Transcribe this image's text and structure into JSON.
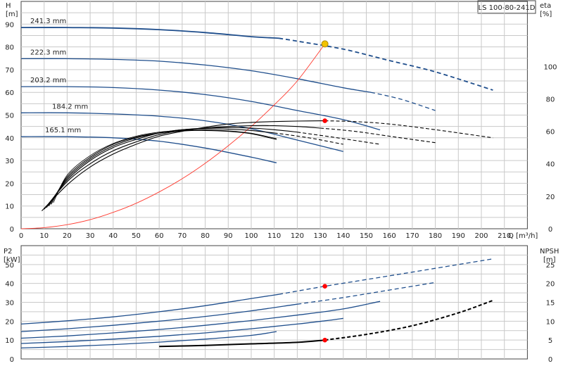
{
  "title": "LS 100-80-241D",
  "top_chart": {
    "y_left_label": "H",
    "y_left_unit": "[m]",
    "y_right_label": "eta",
    "y_right_unit": "[%]",
    "x_label": "Q [m³/h]",
    "x_ticks": [
      0,
      10,
      20,
      30,
      40,
      50,
      60,
      70,
      80,
      90,
      100,
      110,
      120,
      130,
      140,
      150,
      160,
      170,
      180,
      190,
      200,
      210
    ],
    "y_left_ticks": [
      0,
      10,
      20,
      30,
      40,
      50,
      60,
      70,
      80,
      90
    ],
    "y_right_ticks": [
      0,
      20,
      40,
      60,
      80,
      100
    ]
  },
  "bottom_chart": {
    "y_left_label": "P2",
    "y_left_unit": "[kW]",
    "y_right_label": "NPSH",
    "y_right_unit": "[m]",
    "y_left_ticks": [
      0,
      10,
      20,
      30,
      40,
      50
    ],
    "y_right_ticks": [
      0,
      5,
      10,
      15,
      20,
      25
    ]
  },
  "colors": {
    "curve_blue": "#1f4e8c",
    "system_curve": "#ff3b30",
    "duty_point": "#f2c200",
    "marker": "#ff0000",
    "eta_curve": "#000000"
  },
  "chart_data": [
    {
      "type": "line",
      "title": "",
      "xlabel": "Q [m³/h]",
      "ylabel": "H [m]",
      "y2label": "eta [%]",
      "xlim": [
        0,
        220
      ],
      "ylim": [
        0,
        100
      ],
      "y2lim": [
        0,
        140
      ],
      "series": [
        {
          "name": "241.3 mm",
          "axis": "H",
          "solid_to": 112,
          "x": [
            0,
            20,
            40,
            60,
            80,
            100,
            112,
            120,
            140,
            160,
            180,
            205
          ],
          "y": [
            88.5,
            88.5,
            88.3,
            87.6,
            86.3,
            84.5,
            83.8,
            82.5,
            79,
            74,
            69,
            61
          ]
        },
        {
          "name": "222.3 mm",
          "axis": "H",
          "solid_to": 152,
          "x": [
            0,
            20,
            40,
            60,
            80,
            100,
            120,
            140,
            152,
            165,
            180
          ],
          "y": [
            74.8,
            74.8,
            74.5,
            73.7,
            72,
            69.5,
            66,
            62,
            60,
            57,
            52
          ]
        },
        {
          "name": "203.2 mm",
          "axis": "H",
          "solid_to": 156,
          "x": [
            0,
            20,
            40,
            60,
            80,
            100,
            120,
            140,
            156
          ],
          "y": [
            62.5,
            62.5,
            62.1,
            61,
            59,
            56,
            52,
            48,
            43.5
          ]
        },
        {
          "name": "184.2 mm",
          "axis": "H",
          "solid_to": 140,
          "x": [
            0,
            20,
            40,
            60,
            80,
            100,
            120,
            140
          ],
          "y": [
            51,
            51,
            50.5,
            49.5,
            47.5,
            44,
            39,
            34
          ]
        },
        {
          "name": "165.1 mm",
          "axis": "H",
          "solid_to": 111,
          "x": [
            0,
            20,
            40,
            60,
            80,
            100,
            111
          ],
          "y": [
            40.5,
            40.5,
            40,
            38.5,
            35.5,
            31.5,
            29
          ]
        },
        {
          "name": "",
          "axis": "H",
          "style": "system",
          "x": [
            0,
            10,
            20,
            30,
            40,
            50,
            60,
            70,
            80,
            90,
            100,
            110,
            120,
            132
          ],
          "y": [
            0,
            0.5,
            1.8,
            4,
            7.2,
            11.2,
            16.2,
            22,
            28.8,
            36.5,
            45,
            54.5,
            65,
            81.3
          ]
        },
        {
          "name": "",
          "axis": "eta",
          "solid_to": 132,
          "x": [
            9,
            20,
            30,
            40,
            50,
            60,
            70,
            80,
            90,
            100,
            110,
            120,
            132,
            145,
            160,
            180,
            205
          ],
          "y": [
            11,
            27,
            38,
            46,
            52,
            57,
            60,
            62.5,
            64.5,
            65.5,
            66,
            66.3,
            66.5,
            66,
            64.5,
            61,
            56
          ]
        },
        {
          "name": "",
          "axis": "eta",
          "solid_to": 130,
          "x": [
            10,
            20,
            30,
            40,
            50,
            60,
            70,
            80,
            90,
            100,
            110,
            120,
            130,
            145,
            160,
            180
          ],
          "y": [
            12,
            29,
            40,
            48,
            53.5,
            58,
            60.5,
            62,
            63,
            63.5,
            63.5,
            63,
            62,
            60,
            57,
            53
          ]
        },
        {
          "name": "",
          "axis": "eta",
          "solid_to": 120,
          "x": [
            11,
            20,
            30,
            40,
            50,
            60,
            70,
            80,
            90,
            100,
            110,
            120,
            135,
            156
          ],
          "y": [
            13,
            30,
            42,
            50,
            55,
            59,
            61,
            62,
            62.3,
            62,
            61,
            59.5,
            56.5,
            52
          ]
        },
        {
          "name": "",
          "axis": "eta",
          "solid_to": 110,
          "x": [
            12,
            20,
            30,
            40,
            50,
            60,
            70,
            80,
            90,
            100,
            110,
            125,
            140
          ],
          "y": [
            14,
            31,
            43,
            51,
            56,
            59,
            61,
            61.6,
            61.3,
            60.5,
            59,
            56,
            52
          ]
        },
        {
          "name": "",
          "axis": "eta",
          "solid_to": 111,
          "x": [
            13,
            20,
            30,
            40,
            50,
            60,
            70,
            80,
            90,
            100,
            111
          ],
          "y": [
            15,
            32,
            44,
            52,
            56.5,
            59,
            60.2,
            60.5,
            60,
            58.5,
            55
          ]
        },
        {
          "name": "",
          "axis": "eta",
          "style": "thin",
          "x": [
            14,
            20,
            30,
            40,
            50,
            60,
            70,
            80,
            90,
            100,
            111
          ],
          "y": [
            16,
            33,
            45,
            52.5,
            57,
            59.5,
            60.5,
            60.8,
            60.3,
            58.8,
            55.5
          ]
        }
      ],
      "points": [
        {
          "name": "duty_point",
          "axis": "H",
          "x": 132,
          "y": 81.3
        },
        {
          "name": "eta_point",
          "axis": "eta",
          "x": 132,
          "y": 66.5
        }
      ]
    },
    {
      "type": "line",
      "title": "",
      "xlabel": "Q [m³/h]",
      "ylabel": "P2 [kW]",
      "y2label": "NPSH [m]",
      "xlim": [
        0,
        220
      ],
      "ylim": [
        0,
        60
      ],
      "y2lim": [
        0,
        30
      ],
      "series": [
        {
          "name": "",
          "axis": "P2",
          "solid_to": 112,
          "x": [
            0,
            20,
            40,
            60,
            80,
            100,
            112,
            132,
            160,
            180,
            205
          ],
          "y": [
            18.5,
            20.2,
            22.3,
            25,
            28.2,
            32,
            34.2,
            38.5,
            44,
            48,
            53
          ]
        },
        {
          "name": "",
          "axis": "P2",
          "solid_to": 120,
          "x": [
            0,
            20,
            40,
            60,
            80,
            100,
            120,
            140,
            160,
            180
          ],
          "y": [
            14.5,
            16,
            17.8,
            20,
            22.5,
            25.5,
            29,
            32.5,
            36.5,
            40.5
          ]
        },
        {
          "name": "",
          "axis": "P2",
          "solid_to": 156,
          "x": [
            0,
            20,
            40,
            60,
            80,
            100,
            120,
            140,
            156
          ],
          "y": [
            11,
            12.2,
            13.8,
            15.6,
            17.8,
            20.3,
            23.2,
            26.5,
            30.5
          ]
        },
        {
          "name": "",
          "axis": "P2",
          "solid_to": 140,
          "x": [
            0,
            20,
            40,
            60,
            80,
            100,
            120,
            132,
            140
          ],
          "y": [
            8.2,
            9.2,
            10.5,
            12,
            13.8,
            16,
            18.5,
            20.2,
            21.5
          ]
        },
        {
          "name": "",
          "axis": "P2",
          "solid_to": 111,
          "x": [
            0,
            20,
            40,
            60,
            80,
            100,
            111
          ],
          "y": [
            5.8,
            6.6,
            7.6,
            8.9,
            10.5,
            12.5,
            14.5
          ]
        },
        {
          "name": "",
          "axis": "NPSH",
          "solid_to": 132,
          "x": [
            60,
            80,
            100,
            120,
            132,
            150,
            170,
            190,
            205
          ],
          "y": [
            3.3,
            3.6,
            4,
            4.4,
            5,
            6.5,
            8.8,
            12.2,
            15.5
          ]
        }
      ],
      "points": [
        {
          "name": "p2_point",
          "axis": "P2",
          "x": 132,
          "y": 38.5
        },
        {
          "name": "npsh_point",
          "axis": "NPSH",
          "x": 132,
          "y": 5
        }
      ]
    }
  ]
}
